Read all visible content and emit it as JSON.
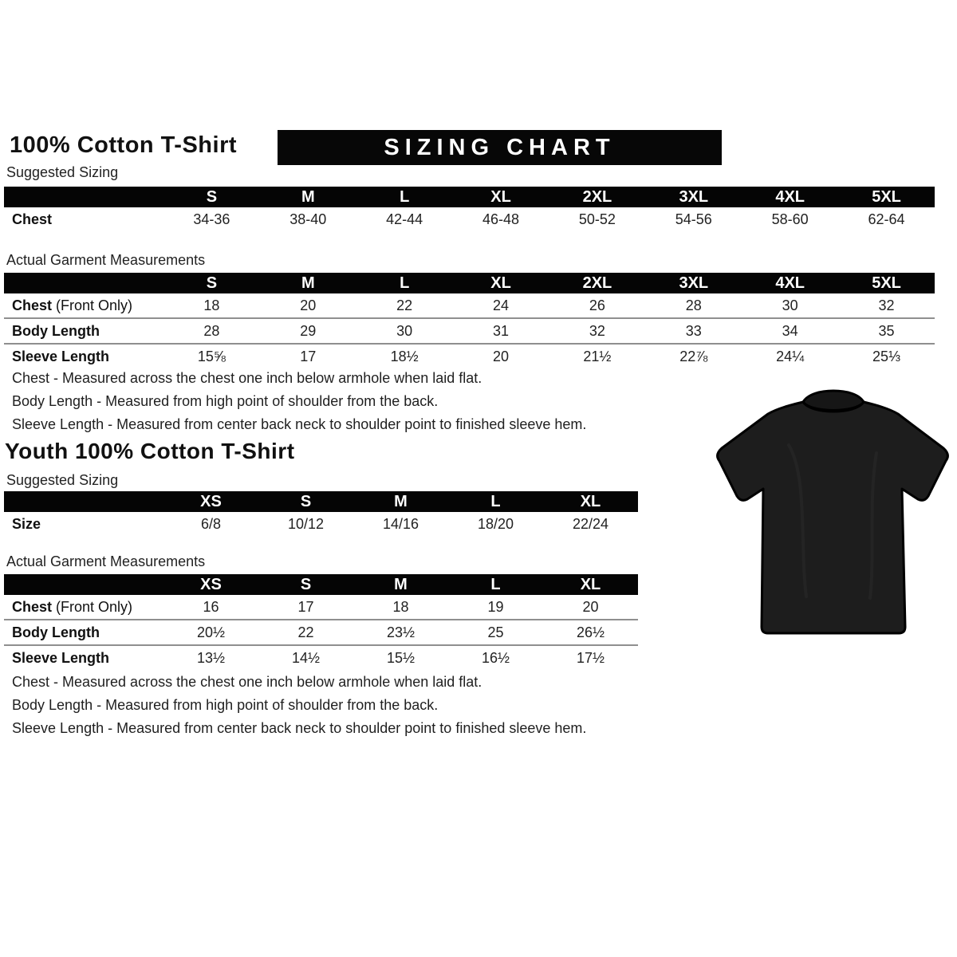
{
  "page": {
    "background": "#ffffff",
    "accent_black": "#050505",
    "separator_gray": "#8f8f8f"
  },
  "adult": {
    "title": "100% Cotton T-Shirt",
    "banner": "SIZING CHART",
    "suggested": {
      "label": "Suggested Sizing",
      "columns": [
        "S",
        "M",
        "L",
        "XL",
        "2XL",
        "3XL",
        "4XL",
        "5XL"
      ],
      "rows": [
        {
          "label": "Chest",
          "label_suffix": "",
          "values": [
            "34-36",
            "38-40",
            "42-44",
            "46-48",
            "50-52",
            "54-56",
            "58-60",
            "62-64"
          ]
        }
      ]
    },
    "actual": {
      "label": "Actual Garment Measurements",
      "columns": [
        "S",
        "M",
        "L",
        "XL",
        "2XL",
        "3XL",
        "4XL",
        "5XL"
      ],
      "rows": [
        {
          "label": "Chest",
          "label_suffix": " (Front Only)",
          "values": [
            "18",
            "20",
            "22",
            "24",
            "26",
            "28",
            "30",
            "32"
          ]
        },
        {
          "label": "Body Length",
          "label_suffix": "",
          "values": [
            "28",
            "29",
            "30",
            "31",
            "32",
            "33",
            "34",
            "35"
          ]
        },
        {
          "label": "Sleeve Length",
          "label_suffix": "",
          "values": [
            "15⅝",
            "17",
            "18½",
            "20",
            "21½",
            "22⅞",
            "24¼",
            "25⅓"
          ]
        }
      ]
    },
    "notes": [
      "Chest - Measured across the chest one inch below armhole when laid flat.",
      "Body Length - Measured from high point of shoulder from the back.",
      "Sleeve Length - Measured from center back neck to shoulder point to finished sleeve hem."
    ]
  },
  "youth": {
    "title": "Youth 100% Cotton T-Shirt",
    "suggested": {
      "label": "Suggested Sizing",
      "columns": [
        "XS",
        "S",
        "M",
        "L",
        "XL"
      ],
      "rows": [
        {
          "label": "Size",
          "label_suffix": "",
          "values": [
            "6/8",
            "10/12",
            "14/16",
            "18/20",
            "22/24"
          ]
        }
      ]
    },
    "actual": {
      "label": "Actual Garment Measurements",
      "columns": [
        "XS",
        "S",
        "M",
        "L",
        "XL"
      ],
      "rows": [
        {
          "label": "Chest",
          "label_suffix": " (Front Only)",
          "values": [
            "16",
            "17",
            "18",
            "19",
            "20"
          ]
        },
        {
          "label": "Body Length",
          "label_suffix": "",
          "values": [
            "20½",
            "22",
            "23½",
            "25",
            "26½"
          ]
        },
        {
          "label": "Sleeve Length",
          "label_suffix": "",
          "values": [
            "13½",
            "14½",
            "15½",
            "16½",
            "17½"
          ]
        }
      ]
    },
    "notes": [
      "Chest - Measured across the chest one inch below armhole when laid flat.",
      "Body Length - Measured from high point of shoulder from the back.",
      "Sleeve Length - Measured from center back neck to shoulder point to finished sleeve hem."
    ]
  },
  "tshirt": {
    "description": "black short-sleeve crew-neck t-shirt",
    "fill_color": "#1d1d1d",
    "outline_color": "#000000"
  }
}
